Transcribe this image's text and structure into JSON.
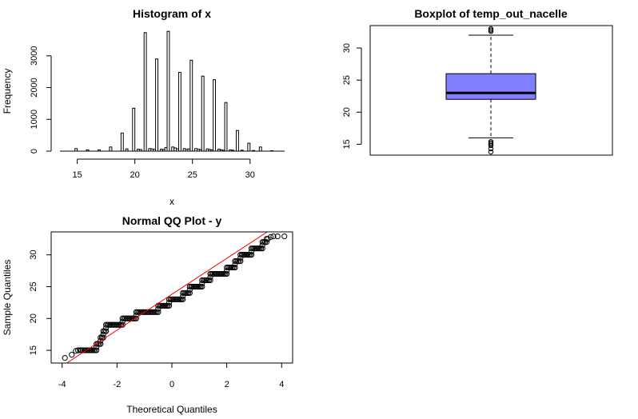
{
  "chart_data": [
    {
      "type": "histogram",
      "title": "Histogram of x",
      "xlabel": "x",
      "ylabel": "Frequency",
      "xlim": [
        13.5,
        33
      ],
      "ylim": [
        0,
        3800
      ],
      "xticks": [
        15,
        20,
        25,
        30
      ],
      "yticks": [
        0,
        1000,
        2000,
        3000
      ],
      "bin_width": 0.2,
      "bins": [
        [
          14.8,
          80
        ],
        [
          15.8,
          40
        ],
        [
          16.8,
          40
        ],
        [
          17.8,
          130
        ],
        [
          18.8,
          570
        ],
        [
          19.2,
          70
        ],
        [
          19.8,
          1350
        ],
        [
          20.2,
          60
        ],
        [
          20.4,
          50
        ],
        [
          20.8,
          3730
        ],
        [
          21.2,
          80
        ],
        [
          21.4,
          70
        ],
        [
          21.6,
          60
        ],
        [
          21.8,
          2900
        ],
        [
          22.2,
          60
        ],
        [
          22.4,
          50
        ],
        [
          22.6,
          110
        ],
        [
          22.8,
          3770
        ],
        [
          23.2,
          130
        ],
        [
          23.4,
          100
        ],
        [
          23.6,
          70
        ],
        [
          23.8,
          2480
        ],
        [
          24.2,
          80
        ],
        [
          24.4,
          60
        ],
        [
          24.6,
          70
        ],
        [
          24.8,
          2860
        ],
        [
          25.2,
          80
        ],
        [
          25.4,
          60
        ],
        [
          25.6,
          50
        ],
        [
          25.8,
          2360
        ],
        [
          26.2,
          70
        ],
        [
          26.4,
          50
        ],
        [
          26.6,
          40
        ],
        [
          26.8,
          2250
        ],
        [
          27.2,
          60
        ],
        [
          27.4,
          40
        ],
        [
          27.6,
          30
        ],
        [
          27.8,
          1530
        ],
        [
          28.2,
          40
        ],
        [
          28.4,
          30
        ],
        [
          28.8,
          650
        ],
        [
          29.2,
          30
        ],
        [
          29.8,
          250
        ],
        [
          30.2,
          20
        ],
        [
          30.8,
          130
        ],
        [
          31.8,
          15
        ]
      ]
    },
    {
      "type": "boxplot",
      "title": "Boxplot of temp_out_nacelle",
      "ylim": [
        13.3,
        33.5
      ],
      "yticks": [
        15,
        20,
        25,
        30
      ],
      "fill_color": "#7f7fff",
      "stats": {
        "lower_whisker": 16,
        "q1": 22,
        "median": 23,
        "q3": 26,
        "upper_whisker": 32
      },
      "outliers": [
        13.8,
        14.3,
        14.8,
        15.0,
        15.2,
        15.4,
        32.6,
        32.8,
        33.0
      ]
    },
    {
      "type": "scatter",
      "title": "Normal QQ Plot - y",
      "xlabel": "Theoretical Quantiles",
      "ylabel": "Sample Quantiles",
      "xlim": [
        -4.4,
        4.4
      ],
      "ylim": [
        13,
        33.6
      ],
      "xticks": [
        -4,
        -2,
        0,
        2,
        4
      ],
      "yticks": [
        15,
        20,
        25,
        30
      ],
      "reference_line": {
        "slope": 2.82,
        "intercept": 23.8,
        "color": "#ff0000"
      },
      "steps": [
        [
          15,
          -3.35,
          -2.75
        ],
        [
          16,
          -2.75,
          -2.6
        ],
        [
          17,
          -2.6,
          -2.5
        ],
        [
          18,
          -2.5,
          -2.4
        ],
        [
          19,
          -2.4,
          -1.8
        ],
        [
          20,
          -1.8,
          -1.3
        ],
        [
          21,
          -1.3,
          -0.5
        ],
        [
          22,
          -0.5,
          -0.1
        ],
        [
          23,
          -0.1,
          0.4
        ],
        [
          24,
          0.4,
          0.65
        ],
        [
          25,
          0.65,
          1.1
        ],
        [
          26,
          1.1,
          1.4
        ],
        [
          27,
          1.4,
          2.0
        ],
        [
          28,
          2.0,
          2.3
        ],
        [
          29,
          2.3,
          2.5
        ],
        [
          30,
          2.5,
          2.9
        ],
        [
          31,
          2.9,
          3.3
        ],
        [
          32,
          3.3,
          3.45
        ]
      ],
      "tail_points": [
        [
          -3.9,
          13.8
        ],
        [
          -3.65,
          14.3
        ],
        [
          -3.5,
          14.9
        ],
        [
          -3.42,
          15.0
        ],
        [
          3.5,
          32.5
        ],
        [
          3.6,
          32.8
        ],
        [
          3.7,
          32.9
        ],
        [
          3.85,
          32.9
        ],
        [
          4.1,
          32.9
        ]
      ]
    }
  ]
}
